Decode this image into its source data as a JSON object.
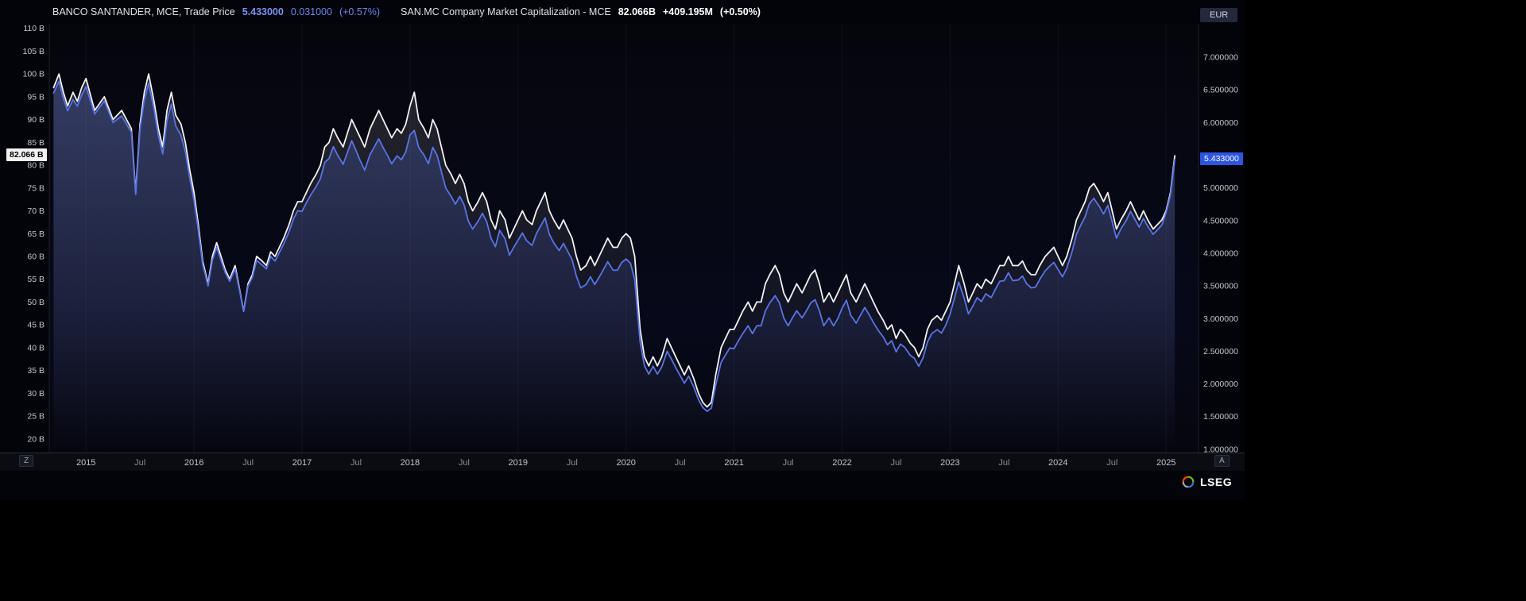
{
  "header": {
    "left_series": {
      "title": "BANCO SANTANDER, MCE, Trade Price",
      "price": "5.433000",
      "change": "0.031000",
      "change_pct": "(+0.57%)"
    },
    "right_series": {
      "title": "SAN.MC Company Market Capitalization - MCE",
      "value": "82.066B",
      "change": "+409.195M",
      "change_pct": "(+0.50%)"
    },
    "currency_label": "EUR"
  },
  "badges": {
    "market_cap": {
      "label": "82.066 B",
      "value": 82.066
    },
    "price": {
      "label": "5.433000",
      "value": 5.433
    }
  },
  "footer": {
    "logo_text": "LSEG",
    "zoom_left": "Z",
    "zoom_right": "A"
  },
  "chart_data": {
    "type": "line",
    "title": "",
    "x_unit": "decimal_year",
    "x_domain": [
      2014.66,
      2025.3
    ],
    "grid": "vertical-years-faint",
    "legend_position": "top-left",
    "left_axis": {
      "suffix": " B",
      "domain": [
        17.0,
        111.0
      ],
      "ticks": [
        110,
        105,
        100,
        95,
        90,
        85,
        80,
        75,
        70,
        65,
        60,
        55,
        50,
        45,
        40,
        35,
        30,
        25,
        20
      ]
    },
    "right_axis": {
      "decimals": 6,
      "domain": [
        0.95,
        7.51
      ],
      "ticks": [
        7,
        6.5,
        6,
        5.5,
        5,
        4.5,
        4,
        3.5,
        3,
        2.5,
        2,
        1.5,
        1
      ]
    },
    "gridlines_x": [
      2015,
      2016,
      2017,
      2018,
      2019,
      2020,
      2021,
      2022,
      2023,
      2024,
      2025
    ],
    "x_ticks": [
      {
        "label": "2015",
        "x": 2015,
        "major": true
      },
      {
        "label": "Jul",
        "x": 2015.5,
        "major": false
      },
      {
        "label": "2016",
        "x": 2016,
        "major": true
      },
      {
        "label": "Jul",
        "x": 2016.5,
        "major": false
      },
      {
        "label": "2017",
        "x": 2017,
        "major": true
      },
      {
        "label": "Jul",
        "x": 2017.5,
        "major": false
      },
      {
        "label": "2018",
        "x": 2018,
        "major": true
      },
      {
        "label": "Jul",
        "x": 2018.5,
        "major": false
      },
      {
        "label": "2019",
        "x": 2019,
        "major": true
      },
      {
        "label": "Jul",
        "x": 2019.5,
        "major": false
      },
      {
        "label": "2020",
        "x": 2020,
        "major": true
      },
      {
        "label": "Jul",
        "x": 2020.5,
        "major": false
      },
      {
        "label": "2021",
        "x": 2021,
        "major": true
      },
      {
        "label": "Jul",
        "x": 2021.5,
        "major": false
      },
      {
        "label": "2022",
        "x": 2022,
        "major": true
      },
      {
        "label": "Jul",
        "x": 2022.5,
        "major": false
      },
      {
        "label": "2023",
        "x": 2023,
        "major": true
      },
      {
        "label": "Jul",
        "x": 2023.5,
        "major": false
      },
      {
        "label": "2024",
        "x": 2024,
        "major": true
      },
      {
        "label": "Jul",
        "x": 2024.5,
        "major": false
      },
      {
        "label": "2025",
        "x": 2025,
        "major": true
      }
    ],
    "x": [
      2014.7,
      2014.75,
      2014.79,
      2014.83,
      2014.88,
      2014.92,
      2014.96,
      2015.0,
      2015.08,
      2015.17,
      2015.25,
      2015.33,
      2015.42,
      2015.46,
      2015.5,
      2015.54,
      2015.58,
      2015.63,
      2015.67,
      2015.71,
      2015.75,
      2015.79,
      2015.83,
      2015.88,
      2015.92,
      2015.96,
      2016.0,
      2016.04,
      2016.08,
      2016.13,
      2016.17,
      2016.21,
      2016.25,
      2016.29,
      2016.33,
      2016.38,
      2016.42,
      2016.46,
      2016.5,
      2016.54,
      2016.58,
      2016.63,
      2016.67,
      2016.71,
      2016.75,
      2016.79,
      2016.83,
      2016.88,
      2016.92,
      2016.96,
      2017.0,
      2017.04,
      2017.08,
      2017.13,
      2017.17,
      2017.21,
      2017.25,
      2017.29,
      2017.33,
      2017.38,
      2017.42,
      2017.46,
      2017.5,
      2017.54,
      2017.58,
      2017.63,
      2017.67,
      2017.71,
      2017.75,
      2017.79,
      2017.83,
      2017.88,
      2017.92,
      2017.96,
      2018.0,
      2018.04,
      2018.08,
      2018.13,
      2018.17,
      2018.21,
      2018.25,
      2018.29,
      2018.33,
      2018.38,
      2018.42,
      2018.46,
      2018.5,
      2018.54,
      2018.58,
      2018.63,
      2018.67,
      2018.71,
      2018.75,
      2018.79,
      2018.83,
      2018.88,
      2018.92,
      2018.96,
      2019.0,
      2019.04,
      2019.08,
      2019.13,
      2019.17,
      2019.21,
      2019.25,
      2019.29,
      2019.33,
      2019.38,
      2019.42,
      2019.46,
      2019.5,
      2019.54,
      2019.58,
      2019.63,
      2019.67,
      2019.71,
      2019.75,
      2019.79,
      2019.83,
      2019.88,
      2019.92,
      2019.96,
      2020.0,
      2020.04,
      2020.08,
      2020.13,
      2020.17,
      2020.21,
      2020.25,
      2020.29,
      2020.33,
      2020.38,
      2020.42,
      2020.46,
      2020.5,
      2020.54,
      2020.58,
      2020.63,
      2020.67,
      2020.71,
      2020.75,
      2020.79,
      2020.83,
      2020.88,
      2020.92,
      2020.96,
      2021.0,
      2021.04,
      2021.08,
      2021.13,
      2021.17,
      2021.21,
      2021.25,
      2021.29,
      2021.33,
      2021.38,
      2021.42,
      2021.46,
      2021.5,
      2021.54,
      2021.58,
      2021.63,
      2021.67,
      2021.71,
      2021.75,
      2021.79,
      2021.83,
      2021.88,
      2021.92,
      2021.96,
      2022.0,
      2022.04,
      2022.08,
      2022.13,
      2022.17,
      2022.21,
      2022.25,
      2022.29,
      2022.33,
      2022.38,
      2022.42,
      2022.46,
      2022.5,
      2022.54,
      2022.58,
      2022.63,
      2022.67,
      2022.71,
      2022.75,
      2022.79,
      2022.83,
      2022.88,
      2022.92,
      2022.96,
      2023.0,
      2023.04,
      2023.08,
      2023.13,
      2023.17,
      2023.21,
      2023.25,
      2023.29,
      2023.33,
      2023.38,
      2023.42,
      2023.46,
      2023.5,
      2023.54,
      2023.58,
      2023.63,
      2023.67,
      2023.71,
      2023.75,
      2023.79,
      2023.83,
      2023.88,
      2023.92,
      2023.96,
      2024.0,
      2024.04,
      2024.08,
      2024.13,
      2024.17,
      2024.21,
      2024.25,
      2024.29,
      2024.33,
      2024.38,
      2024.42,
      2024.46,
      2024.5,
      2024.54,
      2024.58,
      2024.63,
      2024.67,
      2024.71,
      2024.75,
      2024.79,
      2024.83,
      2024.88,
      2024.92,
      2024.96,
      2025.0,
      2025.04,
      2025.08
    ],
    "series": [
      {
        "name": "SAN.MC Company Market Capitalization - MCE",
        "key": "market-cap",
        "axis": "left",
        "unit": "B EUR",
        "color": "#f2f2f2",
        "values": [
          97,
          100,
          96,
          93,
          96,
          94,
          97,
          99,
          92,
          95,
          90,
          92,
          88,
          74,
          89,
          96,
          100,
          94,
          88,
          84,
          92,
          96,
          91,
          89,
          85,
          79,
          74,
          67,
          59,
          54,
          60,
          63,
          60,
          57,
          55,
          58,
          53,
          48,
          54,
          56,
          60,
          59,
          58,
          61,
          60,
          62,
          64,
          67,
          70,
          72,
          72,
          74,
          76,
          78,
          80,
          84,
          85,
          88,
          86,
          84,
          87,
          90,
          88,
          86,
          84,
          88,
          90,
          92,
          90,
          88,
          86,
          88,
          87,
          89,
          93,
          96,
          90,
          88,
          86,
          90,
          88,
          84,
          80,
          78,
          76,
          78,
          76,
          72,
          70,
          72,
          74,
          72,
          68,
          66,
          70,
          68,
          64,
          66,
          68,
          70,
          68,
          67,
          70,
          72,
          74,
          70,
          68,
          66,
          68,
          66,
          64,
          60,
          57,
          58,
          60,
          58,
          60,
          62,
          64,
          62,
          62,
          64,
          65,
          64,
          60,
          44,
          38,
          36,
          38,
          36,
          38,
          42,
          40,
          38,
          36,
          34,
          36,
          33,
          30,
          28,
          27,
          28,
          34,
          40,
          42,
          44,
          44,
          46,
          48,
          50,
          48,
          50,
          50,
          54,
          56,
          58,
          56,
          52,
          50,
          52,
          54,
          52,
          54,
          56,
          57,
          54,
          50,
          52,
          50,
          52,
          54,
          56,
          52,
          50,
          52,
          54,
          52,
          50,
          48,
          46,
          44,
          45,
          42,
          44,
          43,
          41,
          40,
          38,
          40,
          44,
          46,
          47,
          46,
          48,
          50,
          54,
          58,
          54,
          50,
          52,
          54,
          53,
          55,
          54,
          56,
          58,
          58,
          60,
          58,
          58,
          59,
          57,
          56,
          56,
          58,
          60,
          61,
          62,
          60,
          58,
          60,
          64,
          68,
          70,
          72,
          75,
          76,
          74,
          72,
          74,
          70,
          66,
          68,
          70,
          72,
          70,
          68,
          70,
          68,
          66,
          67,
          68,
          70,
          74,
          82.066
        ]
      },
      {
        "name": "BANCO SANTANDER, MCE, Trade Price",
        "key": "trade-price",
        "axis": "right",
        "unit": "EUR",
        "color": "#5a73e6",
        "values": [
          6.45,
          6.63,
          6.37,
          6.18,
          6.35,
          6.25,
          6.42,
          6.55,
          6.13,
          6.33,
          6.0,
          6.1,
          5.85,
          4.9,
          5.9,
          6.35,
          6.6,
          6.2,
          5.8,
          5.52,
          6.03,
          6.28,
          5.95,
          5.8,
          5.55,
          5.15,
          4.81,
          4.35,
          3.83,
          3.5,
          3.89,
          4.09,
          3.89,
          3.7,
          3.57,
          3.76,
          3.44,
          3.11,
          3.5,
          3.63,
          3.89,
          3.82,
          3.76,
          3.95,
          3.88,
          4.01,
          4.14,
          4.33,
          4.52,
          4.65,
          4.64,
          4.77,
          4.89,
          5.02,
          5.14,
          5.39,
          5.45,
          5.63,
          5.5,
          5.36,
          5.54,
          5.72,
          5.57,
          5.41,
          5.27,
          5.51,
          5.63,
          5.75,
          5.62,
          5.5,
          5.37,
          5.49,
          5.43,
          5.55,
          5.81,
          5.88,
          5.62,
          5.5,
          5.37,
          5.62,
          5.5,
          5.25,
          5.0,
          4.87,
          4.75,
          4.87,
          4.74,
          4.49,
          4.37,
          4.49,
          4.61,
          4.48,
          4.23,
          4.1,
          4.35,
          4.22,
          3.97,
          4.09,
          4.2,
          4.31,
          4.19,
          4.12,
          4.3,
          4.42,
          4.54,
          4.29,
          4.16,
          4.04,
          4.15,
          4.03,
          3.9,
          3.65,
          3.47,
          3.52,
          3.64,
          3.52,
          3.63,
          3.75,
          3.87,
          3.74,
          3.74,
          3.86,
          3.91,
          3.85,
          3.6,
          2.64,
          2.28,
          2.15,
          2.27,
          2.15,
          2.26,
          2.5,
          2.38,
          2.25,
          2.13,
          2.01,
          2.12,
          1.94,
          1.76,
          1.64,
          1.58,
          1.63,
          1.98,
          2.33,
          2.44,
          2.55,
          2.54,
          2.66,
          2.77,
          2.89,
          2.77,
          2.89,
          2.89,
          3.12,
          3.24,
          3.35,
          3.24,
          3.01,
          2.89,
          3.01,
          3.12,
          3.01,
          3.12,
          3.24,
          3.29,
          3.12,
          2.89,
          3.01,
          2.89,
          3.0,
          3.16,
          3.28,
          3.05,
          2.93,
          3.05,
          3.17,
          3.06,
          2.94,
          2.83,
          2.72,
          2.6,
          2.66,
          2.49,
          2.61,
          2.56,
          2.44,
          2.39,
          2.27,
          2.4,
          2.64,
          2.77,
          2.83,
          2.78,
          2.9,
          3.07,
          3.31,
          3.56,
          3.31,
          3.07,
          3.19,
          3.32,
          3.26,
          3.38,
          3.32,
          3.45,
          3.57,
          3.58,
          3.7,
          3.58,
          3.59,
          3.65,
          3.53,
          3.47,
          3.48,
          3.6,
          3.73,
          3.8,
          3.86,
          3.75,
          3.64,
          3.77,
          4.03,
          4.29,
          4.43,
          4.56,
          4.76,
          4.84,
          4.72,
          4.6,
          4.73,
          4.48,
          4.23,
          4.37,
          4.5,
          4.64,
          4.52,
          4.4,
          4.53,
          4.41,
          4.29,
          4.36,
          4.43,
          4.62,
          4.89,
          5.433
        ]
      }
    ]
  }
}
